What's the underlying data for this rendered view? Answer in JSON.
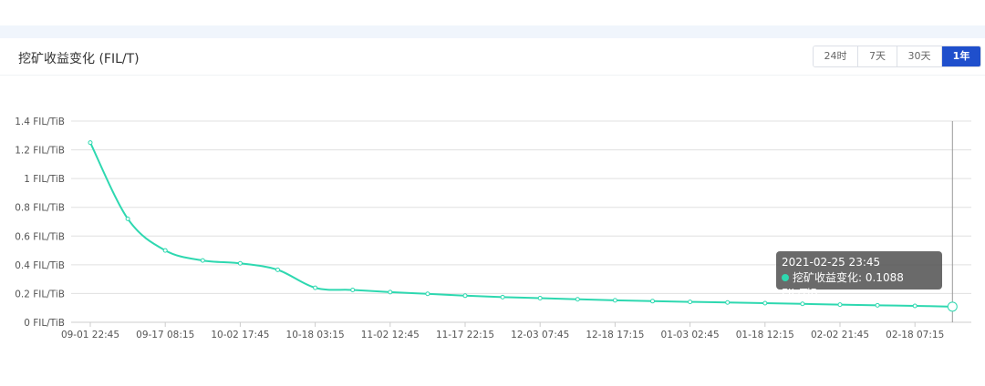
{
  "header": {
    "title": "挖矿收益变化 (FIL/T)"
  },
  "range_buttons": [
    {
      "label": "24时",
      "active": false
    },
    {
      "label": "7天",
      "active": false
    },
    {
      "label": "30天",
      "active": false
    },
    {
      "label": "1年",
      "active": true
    }
  ],
  "chart_data": {
    "type": "line",
    "series": [
      {
        "name": "挖矿收益变化",
        "color": "#2ed8b0",
        "values": [
          1.25,
          0.72,
          0.5,
          0.43,
          0.41,
          0.365,
          0.24,
          0.225,
          0.21,
          0.198,
          0.185,
          0.175,
          0.168,
          0.16,
          0.153,
          0.147,
          0.142,
          0.138,
          0.133,
          0.128,
          0.123,
          0.118,
          0.114,
          0.1088
        ]
      }
    ],
    "x_tick_labels": [
      "09-01 22:45",
      "09-17 08:15",
      "10-02 17:45",
      "10-18 03:15",
      "11-02 12:45",
      "11-17 22:15",
      "12-03 07:45",
      "12-18 17:15",
      "01-03 02:45",
      "01-18 12:15",
      "02-02 21:45",
      "02-18 07:15"
    ],
    "y_tick_labels": [
      "0 FIL/TiB",
      "0.2 FIL/TiB",
      "0.4 FIL/TiB",
      "0.6 FIL/TiB",
      "0.8 FIL/TiB",
      "1 FIL/TiB",
      "1.2 FIL/TiB",
      "1.4 FIL/TiB"
    ],
    "ylim": [
      0,
      1.4
    ],
    "grid": true,
    "tooltip": {
      "date": "2021-02-25 23:45",
      "label": "挖矿收益变化: 0.1088 FIL/TiB"
    }
  }
}
